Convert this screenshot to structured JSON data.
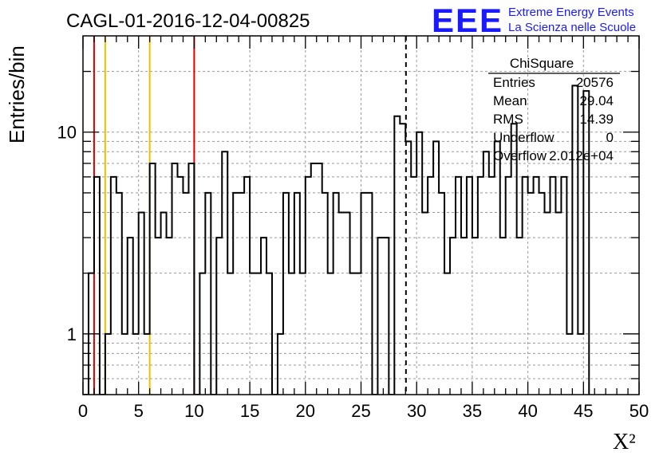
{
  "header": {
    "run_title": "CAGL-01-2016-12-04-00825",
    "logo_text": "EEE",
    "brand_line1": "Extreme Energy Events",
    "brand_line2": "La Scienza nelle Scuole"
  },
  "stats_box": {
    "title": "ChiSquare",
    "rows": [
      {
        "label": "Entries",
        "value": "20576"
      },
      {
        "label": "Mean",
        "value": "29.04"
      },
      {
        "label": "RMS",
        "value": "14.39"
      },
      {
        "label": "Underflow",
        "value": "0"
      },
      {
        "label": "Overflow",
        "value": "2.012e+04"
      }
    ]
  },
  "colors": {
    "histogram": "#000000",
    "red_line": "#dd0000",
    "yellow_line": "#f0c000",
    "brand_blue": "#1a1aff",
    "grid": "#999999"
  },
  "chart_data": {
    "type": "histogram",
    "xlabel": "X²",
    "ylabel": "Entries/bin",
    "xlim": [
      0,
      50
    ],
    "ylim": [
      0.5,
      30
    ],
    "yscale": "log",
    "grid": true,
    "x_ticks": [
      "0",
      "5",
      "10",
      "15",
      "20",
      "25",
      "30",
      "35",
      "40",
      "45",
      "50"
    ],
    "y_ticks": [
      "1",
      "10"
    ],
    "bin_width": 0.5,
    "bin_start": 0,
    "values": [
      0,
      2,
      6,
      0,
      1,
      6,
      5,
      1,
      3,
      1,
      4,
      1,
      7,
      3,
      4,
      3,
      7,
      6,
      5,
      7,
      0,
      2,
      5,
      0,
      3,
      8,
      2,
      5,
      5,
      6,
      2,
      2,
      3,
      2,
      0,
      1,
      5,
      2,
      5,
      2,
      6,
      7,
      7,
      5,
      2,
      5,
      4,
      4,
      2,
      2,
      5,
      5,
      0,
      3,
      3,
      0,
      12,
      11,
      9,
      6,
      10,
      4,
      6,
      9,
      5,
      2,
      3,
      6,
      3,
      6,
      3,
      6,
      8,
      6,
      9,
      3,
      6,
      11,
      3,
      6,
      5,
      6,
      5,
      4,
      6,
      4,
      6,
      1,
      17,
      1,
      16
    ],
    "vertical_lines": [
      {
        "x": 1,
        "color": "red"
      },
      {
        "x": 2,
        "color": "yellow"
      },
      {
        "x": 6,
        "color": "yellow"
      },
      {
        "x": 10,
        "color": "red"
      },
      {
        "x": 29.04,
        "color": "black",
        "style": "dashed"
      }
    ]
  }
}
